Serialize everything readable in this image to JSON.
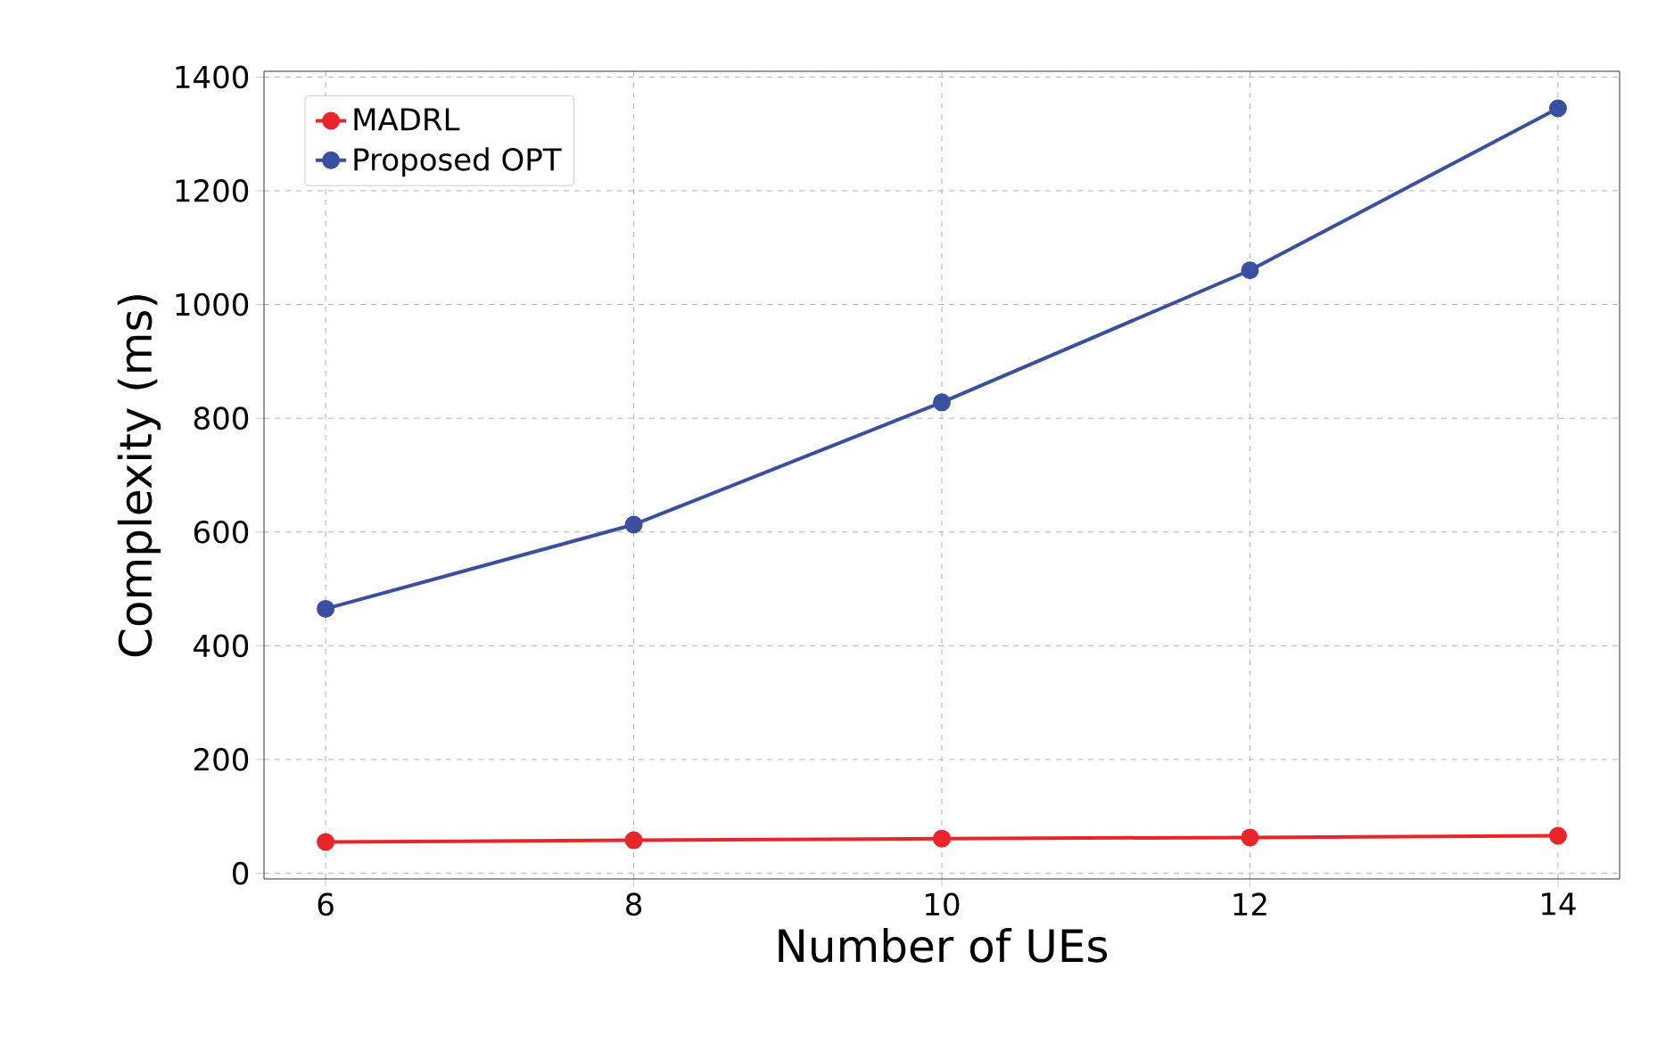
{
  "chart_data": {
    "type": "line",
    "xlabel": "Number of UEs",
    "ylabel": "Complexity (ms)",
    "x": [
      6,
      8,
      10,
      12,
      14
    ],
    "series": [
      {
        "name": "MADRL",
        "color": "#e8262a",
        "values": [
          55,
          58,
          61,
          63,
          66
        ]
      },
      {
        "name": "Proposed OPT",
        "color": "#3a4fa0",
        "values": [
          465,
          613,
          828,
          1060,
          1345
        ]
      }
    ],
    "xlim": [
      5.6,
      14.4
    ],
    "ylim": [
      -10,
      1410
    ],
    "xticks": [
      6,
      8,
      10,
      12,
      14
    ],
    "yticks": [
      0,
      200,
      400,
      600,
      800,
      1000,
      1200,
      1400
    ],
    "grid": true,
    "legend": "top left",
    "marker": "circle",
    "line_style": "solid"
  }
}
